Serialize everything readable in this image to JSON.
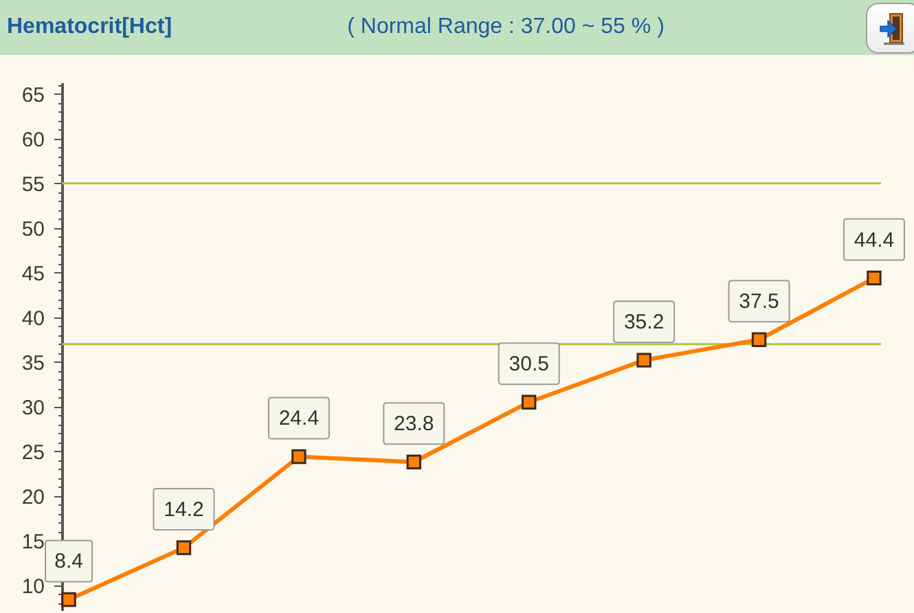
{
  "chart_data": {
    "type": "line",
    "title": "Hematocrit[Hct]",
    "subtitle": "( Normal Range : 37.00 ~ 55 % )",
    "categories": [
      null,
      null,
      null,
      null,
      null,
      null,
      null,
      null
    ],
    "values": [
      8.4,
      14.2,
      24.4,
      23.8,
      30.5,
      35.2,
      37.5,
      44.4
    ],
    "color": "#ff7f00",
    "marker": "square",
    "data_labels": true,
    "tick_labels": "y",
    "ylim": [
      7.2,
      66.3
    ],
    "yticks": [
      {
        "value": 8,
        "label": null
      },
      {
        "value": 9,
        "label": null
      },
      10,
      {
        "value": 11,
        "label": null
      },
      {
        "value": 12,
        "label": null
      },
      {
        "value": 13,
        "label": null
      },
      {
        "value": 14,
        "label": null
      },
      15,
      {
        "value": 16,
        "label": null
      },
      {
        "value": 17,
        "label": null
      },
      {
        "value": 18,
        "label": null
      },
      {
        "value": 19,
        "label": null
      },
      20,
      {
        "value": 21,
        "label": null
      },
      {
        "value": 22,
        "label": null
      },
      {
        "value": 23,
        "label": null
      },
      {
        "value": 24,
        "label": null
      },
      25,
      {
        "value": 26,
        "label": null
      },
      {
        "value": 27,
        "label": null
      },
      {
        "value": 28,
        "label": null
      },
      {
        "value": 29,
        "label": null
      },
      30,
      {
        "value": 31,
        "label": null
      },
      {
        "value": 32,
        "label": null
      },
      {
        "value": 33,
        "label": null
      },
      {
        "value": 34,
        "label": null
      },
      35,
      {
        "value": 36,
        "label": null
      },
      {
        "value": 37,
        "label": null
      },
      {
        "value": 38,
        "label": null
      },
      {
        "value": 39,
        "label": null
      },
      40,
      {
        "value": 41,
        "label": null
      },
      {
        "value": 42,
        "label": null
      },
      {
        "value": 43,
        "label": null
      },
      {
        "value": 44,
        "label": null
      },
      45,
      {
        "value": 46,
        "label": null
      },
      {
        "value": 47,
        "label": null
      },
      {
        "value": 48,
        "label": null
      },
      {
        "value": 49,
        "label": null
      },
      50,
      {
        "value": 51,
        "label": null
      },
      {
        "value": 52,
        "label": null
      },
      {
        "value": 53,
        "label": null
      },
      {
        "value": 54,
        "label": null
      },
      55,
      {
        "value": 56,
        "label": null
      },
      {
        "value": 57,
        "label": null
      },
      {
        "value": 58,
        "label": null
      },
      {
        "value": 59,
        "label": null
      },
      60,
      {
        "value": 61,
        "label": null
      },
      {
        "value": 62,
        "label": null
      },
      {
        "value": 63,
        "label": null
      },
      {
        "value": 64,
        "label": null
      },
      65,
      {
        "value": 66,
        "label": null
      }
    ],
    "ref_lines": [
      {
        "axis": "y",
        "value": 55,
        "color": "#a8c83c"
      },
      {
        "axis": "y",
        "value": 37,
        "color": "#a8c83c"
      }
    ]
  }
}
